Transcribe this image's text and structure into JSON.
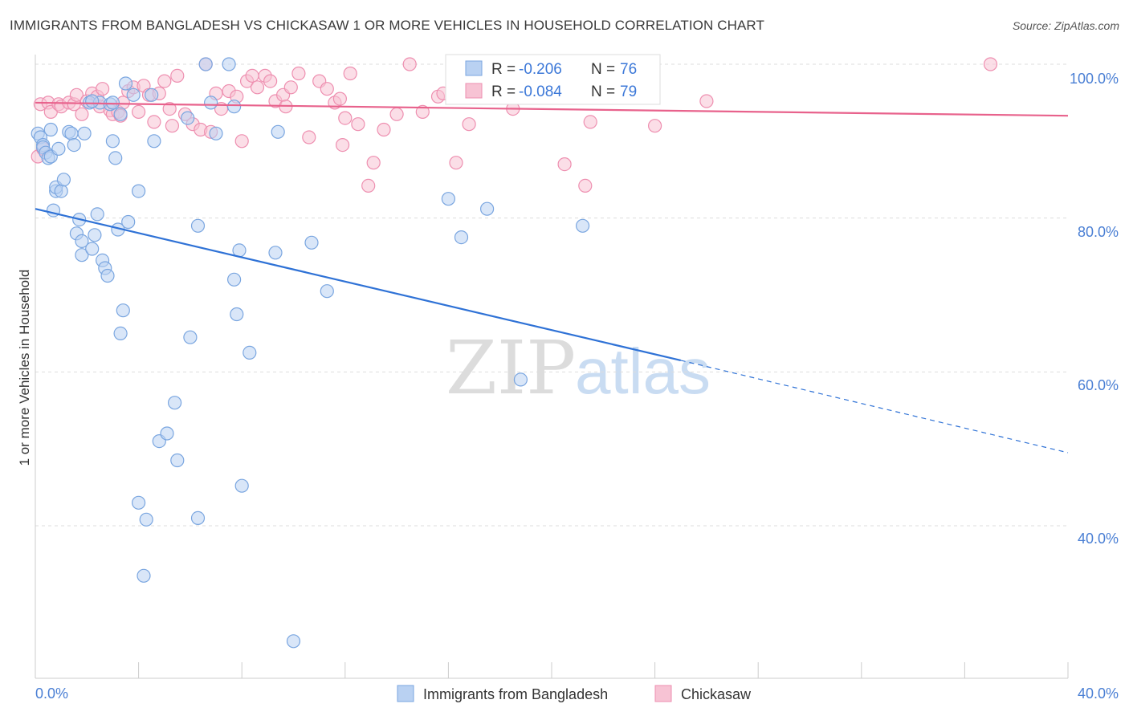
{
  "header": {
    "title": "IMMIGRANTS FROM BANGLADESH VS CHICKASAW 1 OR MORE VEHICLES IN HOUSEHOLD CORRELATION CHART",
    "source": "Source: ZipAtlas.com"
  },
  "watermark": {
    "zip": "ZIP",
    "atlas": "atlas"
  },
  "colors": {
    "blue": "#7aa6e0",
    "blue_fill": "#b9d1f2",
    "blue_line": "#2f72d6",
    "pink": "#ee8fb0",
    "pink_fill": "#f7c3d4",
    "pink_line": "#e8628c",
    "grid": "#dddddd",
    "tick_text": "#4a7fd4"
  },
  "chart_data": {
    "type": "scatter",
    "title": "IMMIGRANTS FROM BANGLADESH VS CHICKASAW 1 OR MORE VEHICLES IN HOUSEHOLD CORRELATION CHART",
    "xlabel": "",
    "ylabel": "1 or more Vehicles in Household",
    "xlim": [
      0,
      40
    ],
    "ylim": [
      20,
      102
    ],
    "x_tick_labels": [
      "0.0%",
      "40.0%"
    ],
    "y_ticks": [
      100,
      80,
      60,
      40
    ],
    "y_tick_labels": [
      "100.0%",
      "80.0%",
      "60.0%",
      "40.0%"
    ],
    "grid": true,
    "legend": {
      "position": "top-center",
      "entries": [
        {
          "r_label": "R =",
          "r_value": "-0.206",
          "n_label": "N =",
          "n_value": "76"
        },
        {
          "r_label": "R =",
          "r_value": "-0.084",
          "n_label": "N =",
          "n_value": "79"
        }
      ]
    },
    "series": [
      {
        "name": "Immigrants from Bangladesh",
        "color": "#7aa6e0",
        "r": -0.206,
        "n": 76,
        "trend": {
          "x0": 0,
          "y0": 81.2,
          "x1": 25,
          "y1": 61.5,
          "dash_to_x": 40,
          "dash_to_y": 49.5
        },
        "points": [
          [
            0.1,
            91.0
          ],
          [
            0.2,
            90.5
          ],
          [
            0.3,
            89.5
          ],
          [
            0.3,
            89.2
          ],
          [
            0.4,
            88.5
          ],
          [
            0.5,
            87.8
          ],
          [
            0.6,
            88.0
          ],
          [
            0.6,
            91.5
          ],
          [
            0.7,
            81.0
          ],
          [
            0.8,
            83.5
          ],
          [
            0.8,
            84.0
          ],
          [
            0.9,
            89.0
          ],
          [
            1.0,
            83.5
          ],
          [
            1.1,
            85.0
          ],
          [
            1.3,
            91.2
          ],
          [
            1.4,
            91.0
          ],
          [
            1.5,
            89.5
          ],
          [
            1.6,
            78.0
          ],
          [
            1.7,
            79.8
          ],
          [
            1.8,
            75.2
          ],
          [
            1.8,
            77.0
          ],
          [
            1.9,
            91.0
          ],
          [
            2.1,
            95.0
          ],
          [
            2.2,
            76.0
          ],
          [
            2.3,
            77.8
          ],
          [
            2.4,
            80.5
          ],
          [
            2.5,
            95.0
          ],
          [
            2.6,
            74.5
          ],
          [
            2.7,
            73.5
          ],
          [
            2.8,
            72.5
          ],
          [
            2.9,
            94.8
          ],
          [
            3.0,
            95.0
          ],
          [
            3.0,
            90.0
          ],
          [
            3.1,
            87.8
          ],
          [
            3.2,
            78.5
          ],
          [
            3.3,
            93.5
          ],
          [
            3.3,
            65.0
          ],
          [
            3.4,
            68.0
          ],
          [
            3.5,
            97.5
          ],
          [
            3.6,
            79.5
          ],
          [
            3.8,
            96.0
          ],
          [
            4.0,
            83.5
          ],
          [
            4.0,
            43.0
          ],
          [
            4.2,
            33.5
          ],
          [
            4.3,
            40.8
          ],
          [
            4.5,
            96.0
          ],
          [
            4.6,
            90.0
          ],
          [
            4.8,
            51.0
          ],
          [
            5.1,
            52.0
          ],
          [
            5.4,
            56.0
          ],
          [
            5.5,
            48.5
          ],
          [
            5.9,
            93.0
          ],
          [
            6.0,
            64.5
          ],
          [
            6.3,
            79.0
          ],
          [
            6.3,
            41.0
          ],
          [
            6.6,
            100.0
          ],
          [
            6.8,
            95.0
          ],
          [
            7.0,
            91.0
          ],
          [
            7.5,
            100.0
          ],
          [
            7.7,
            94.5
          ],
          [
            7.7,
            72.0
          ],
          [
            7.8,
            67.5
          ],
          [
            7.9,
            75.8
          ],
          [
            8.0,
            45.2
          ],
          [
            8.3,
            62.5
          ],
          [
            9.3,
            75.5
          ],
          [
            9.4,
            91.2
          ],
          [
            10.0,
            25.0
          ],
          [
            10.7,
            76.8
          ],
          [
            11.3,
            70.5
          ],
          [
            16.0,
            82.5
          ],
          [
            16.5,
            77.5
          ],
          [
            17.5,
            81.2
          ],
          [
            18.8,
            59.0
          ],
          [
            21.2,
            79.0
          ],
          [
            2.2,
            95.2
          ]
        ]
      },
      {
        "name": "Chickasaw",
        "color": "#ee8fb0",
        "r": -0.084,
        "n": 79,
        "trend": {
          "x0": 0,
          "y0": 95.0,
          "x1": 40,
          "y1": 93.3
        },
        "points": [
          [
            0.1,
            88.0
          ],
          [
            0.2,
            94.8
          ],
          [
            0.3,
            89.0
          ],
          [
            0.5,
            95.0
          ],
          [
            0.6,
            93.8
          ],
          [
            0.9,
            94.8
          ],
          [
            1.0,
            94.5
          ],
          [
            1.3,
            95.0
          ],
          [
            1.5,
            94.8
          ],
          [
            1.6,
            96.0
          ],
          [
            1.8,
            93.5
          ],
          [
            2.0,
            95.2
          ],
          [
            2.2,
            96.2
          ],
          [
            2.4,
            95.8
          ],
          [
            2.5,
            94.5
          ],
          [
            2.6,
            96.8
          ],
          [
            2.9,
            94.0
          ],
          [
            3.0,
            93.5
          ],
          [
            3.2,
            93.8
          ],
          [
            3.4,
            95.0
          ],
          [
            3.6,
            96.5
          ],
          [
            3.8,
            97.0
          ],
          [
            4.0,
            93.8
          ],
          [
            4.2,
            97.2
          ],
          [
            4.4,
            96.0
          ],
          [
            4.6,
            92.5
          ],
          [
            4.8,
            96.2
          ],
          [
            5.0,
            97.8
          ],
          [
            5.2,
            94.2
          ],
          [
            5.5,
            98.5
          ],
          [
            5.8,
            93.5
          ],
          [
            6.1,
            92.2
          ],
          [
            6.4,
            91.5
          ],
          [
            6.6,
            100.0
          ],
          [
            6.8,
            91.2
          ],
          [
            7.0,
            96.2
          ],
          [
            7.2,
            94.2
          ],
          [
            7.5,
            96.5
          ],
          [
            7.8,
            95.8
          ],
          [
            8.0,
            90.0
          ],
          [
            8.2,
            97.8
          ],
          [
            8.4,
            98.5
          ],
          [
            8.6,
            97.0
          ],
          [
            8.9,
            98.5
          ],
          [
            9.1,
            97.8
          ],
          [
            9.3,
            95.2
          ],
          [
            9.6,
            96.0
          ],
          [
            9.9,
            97.0
          ],
          [
            10.2,
            98.8
          ],
          [
            10.6,
            90.5
          ],
          [
            11.0,
            97.8
          ],
          [
            11.3,
            96.8
          ],
          [
            11.6,
            95.0
          ],
          [
            11.9,
            89.5
          ],
          [
            12.0,
            93.0
          ],
          [
            12.2,
            98.8
          ],
          [
            12.5,
            92.2
          ],
          [
            12.9,
            84.2
          ],
          [
            13.1,
            87.2
          ],
          [
            13.5,
            91.5
          ],
          [
            14.0,
            93.5
          ],
          [
            14.5,
            100.0
          ],
          [
            15.0,
            93.8
          ],
          [
            15.6,
            95.8
          ],
          [
            15.8,
            96.2
          ],
          [
            16.3,
            87.2
          ],
          [
            16.8,
            92.2
          ],
          [
            18.0,
            100.0
          ],
          [
            18.5,
            94.2
          ],
          [
            20.5,
            87.0
          ],
          [
            21.3,
            84.2
          ],
          [
            21.5,
            92.5
          ],
          [
            24.0,
            92.0
          ],
          [
            26.0,
            95.2
          ],
          [
            37.0,
            100.0
          ],
          [
            5.3,
            92.0
          ],
          [
            3.3,
            93.3
          ],
          [
            11.8,
            95.5
          ],
          [
            9.7,
            94.5
          ]
        ]
      }
    ]
  },
  "bottom_legend": [
    {
      "label": "Immigrants from Bangladesh"
    },
    {
      "label": "Chickasaw"
    }
  ]
}
